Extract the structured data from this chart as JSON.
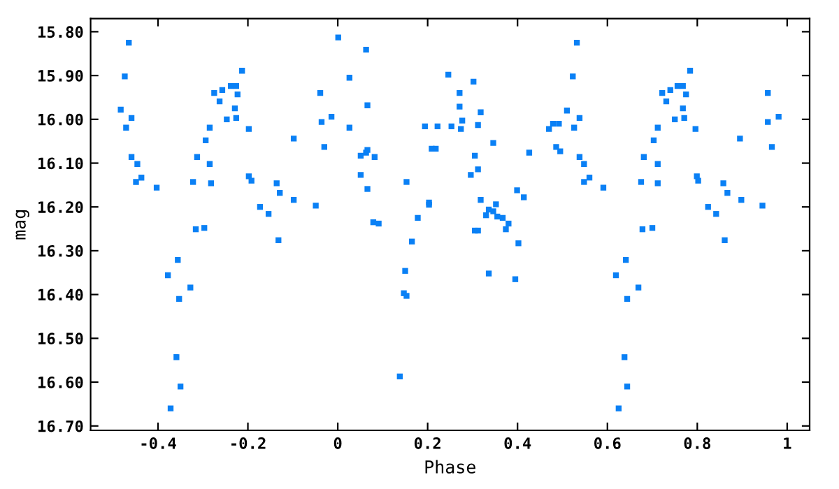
{
  "chart_data": {
    "type": "scatter",
    "xlabel": "Phase",
    "ylabel": "mag",
    "marker": "square",
    "grid": false,
    "xlim": [
      -0.55,
      1.05
    ],
    "ylim": [
      16.71,
      15.77
    ],
    "xticks": [
      -0.4,
      -0.2,
      0,
      0.2,
      0.4,
      0.6,
      0.8,
      1
    ],
    "yticks": [
      {
        "value": 15.8,
        "label": "15.80"
      },
      {
        "value": 15.9,
        "label": "15.90"
      },
      {
        "value": 16.0,
        "label": "16.00"
      },
      {
        "value": 16.1,
        "label": "16.10"
      },
      {
        "value": 16.2,
        "label": "16.20"
      },
      {
        "value": 16.3,
        "label": "16.30"
      },
      {
        "value": 16.4,
        "label": "16.40"
      },
      {
        "value": 16.5,
        "label": "16.50"
      },
      {
        "value": 16.6,
        "label": "16.60"
      },
      {
        "value": 16.7,
        "label": "16.70"
      }
    ],
    "series": [
      {
        "color": "#0a80f5",
        "x": [
          -0.465,
          -0.474,
          -0.483,
          -0.459,
          -0.471,
          -0.459,
          -0.446,
          -0.449,
          -0.437,
          -0.403,
          -0.378,
          -0.356,
          -0.353,
          -0.328,
          -0.359,
          -0.35,
          -0.372,
          -0.322,
          -0.316,
          -0.297,
          -0.313,
          -0.294,
          -0.285,
          -0.285,
          -0.282,
          -0.275,
          -0.263,
          -0.257,
          -0.247,
          -0.238,
          -0.229,
          -0.226,
          -0.223,
          -0.226,
          -0.213,
          -0.198,
          -0.198,
          -0.192,
          -0.173,
          -0.154,
          -0.136,
          -0.129,
          -0.132,
          -0.098,
          -0.098,
          -0.049,
          -0.039,
          -0.036,
          -0.03,
          -0.014,
          0.001,
          0.026,
          0.026,
          0.063,
          0.066,
          0.051,
          0.063,
          0.066,
          0.082,
          0.051,
          0.066,
          0.079,
          0.091,
          0.138,
          0.147,
          0.153,
          0.15,
          0.153,
          0.165,
          0.178,
          0.203,
          0.203,
          0.194,
          0.222,
          0.209,
          0.218,
          0.246,
          0.253,
          0.271,
          0.271,
          0.277,
          0.274,
          0.302,
          0.312,
          0.318,
          0.305,
          0.312,
          0.296,
          0.346,
          0.318,
          0.33,
          0.336,
          0.346,
          0.352,
          0.355,
          0.367,
          0.38,
          0.374,
          0.305,
          0.312,
          0.336,
          0.402,
          0.395,
          0.399,
          0.414,
          0.426,
          0.47,
          0.479,
          0.492,
          0.486,
          0.495,
          0.51,
          0.523,
          0.532,
          0.526,
          0.538,
          0.538,
          0.548,
          0.548,
          0.56,
          0.591,
          0.619,
          0.641,
          0.644,
          0.669,
          0.638,
          0.644,
          0.625,
          0.675,
          0.678,
          0.7,
          0.681,
          0.703,
          0.712,
          0.712,
          0.712,
          0.722,
          0.731,
          0.74,
          0.75,
          0.756,
          0.768,
          0.768,
          0.775,
          0.771,
          0.784,
          0.796,
          0.799,
          0.802,
          0.824,
          0.842,
          0.858,
          0.867,
          0.861,
          0.895,
          0.898,
          0.945,
          0.957,
          0.957,
          0.966,
          0.981
        ],
        "values": [
          15.825,
          15.902,
          15.978,
          15.997,
          16.019,
          16.086,
          16.102,
          16.143,
          16.133,
          16.156,
          16.356,
          16.321,
          16.41,
          16.384,
          16.543,
          16.61,
          16.66,
          16.143,
          16.251,
          16.248,
          16.086,
          16.048,
          16.019,
          16.102,
          16.146,
          15.94,
          15.959,
          15.933,
          16.0,
          15.924,
          15.975,
          15.924,
          15.943,
          15.997,
          15.889,
          16.022,
          16.13,
          16.14,
          16.2,
          16.216,
          16.146,
          16.168,
          16.276,
          16.044,
          16.184,
          16.197,
          15.94,
          16.006,
          16.063,
          15.994,
          15.813,
          15.905,
          16.019,
          15.841,
          15.968,
          16.083,
          16.076,
          16.07,
          16.086,
          16.127,
          16.159,
          16.235,
          16.238,
          16.587,
          16.397,
          16.403,
          16.346,
          16.143,
          16.279,
          16.225,
          16.19,
          16.195,
          16.016,
          16.016,
          16.067,
          16.067,
          15.898,
          16.016,
          15.94,
          15.971,
          16.003,
          16.022,
          15.914,
          16.013,
          15.984,
          16.083,
          16.114,
          16.127,
          16.054,
          16.184,
          16.219,
          16.206,
          16.21,
          16.194,
          16.222,
          16.225,
          16.238,
          16.251,
          16.254,
          16.254,
          16.352,
          16.283,
          16.365,
          16.162,
          16.178,
          16.076,
          16.022,
          16.01,
          16.01,
          16.063,
          16.073,
          15.98,
          15.902,
          15.825,
          16.019,
          15.997,
          16.086,
          16.102,
          16.143,
          16.133,
          16.156,
          16.356,
          16.321,
          16.41,
          16.384,
          16.543,
          16.61,
          16.66,
          16.143,
          16.251,
          16.248,
          16.086,
          16.048,
          16.019,
          16.102,
          16.146,
          15.94,
          15.959,
          15.933,
          16.0,
          15.924,
          15.975,
          15.924,
          15.943,
          15.997,
          15.889,
          16.022,
          16.13,
          16.14,
          16.2,
          16.216,
          16.146,
          16.168,
          16.276,
          16.044,
          16.184,
          16.197,
          15.94,
          16.006,
          16.063,
          15.994
        ]
      }
    ]
  }
}
